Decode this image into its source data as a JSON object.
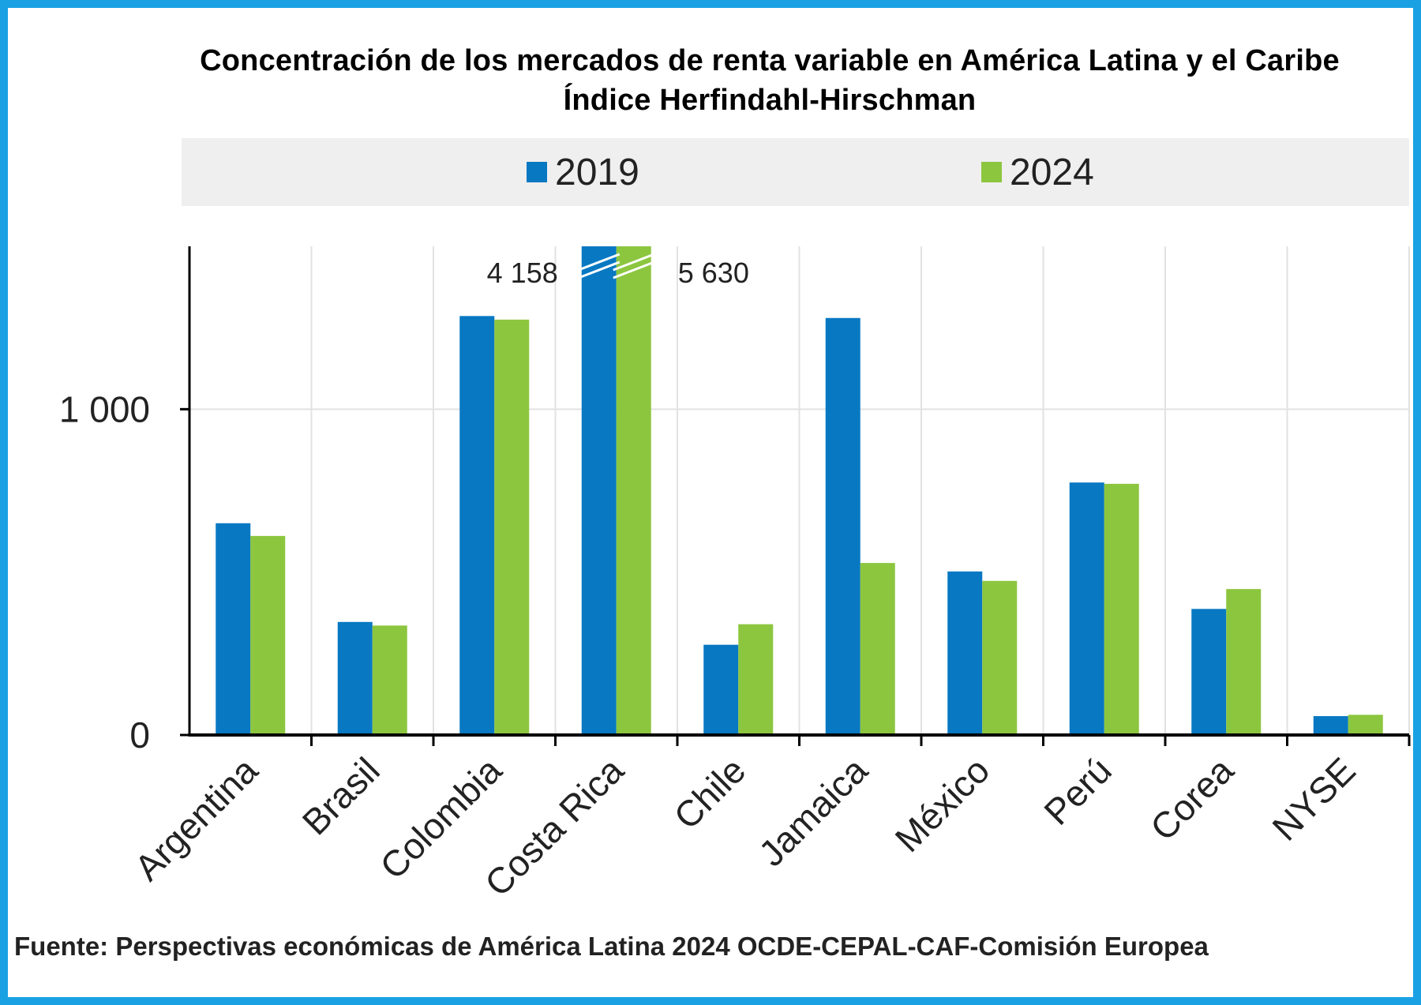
{
  "colors": {
    "series_2019": "#0878c2",
    "series_2024": "#8cc63f",
    "frame": "#1aa1e4",
    "legend_bg": "#efefef",
    "grid": "#e2e2e2"
  },
  "footer": {
    "source": "Fuente: Perspectivas económicas de América Latina 2024 OCDE-CEPAL-CAF-Comisión Europea"
  },
  "chart_data": {
    "type": "bar",
    "title": "Concentración de los mercados de renta variable en América Latina y el Caribe",
    "subtitle": "Índice Herfindahl-Hirschman",
    "categories": [
      "Argentina",
      "Brasil",
      "Colombia",
      "Costa Rica",
      "Chile",
      "Jamaica",
      "México",
      "Perú",
      "Corea",
      "NYSE"
    ],
    "series": [
      {
        "name": "2019",
        "values": [
          650,
          347,
          1286,
          4158,
          277,
          1280,
          502,
          775,
          387,
          58
        ]
      },
      {
        "name": "2024",
        "values": [
          611,
          336,
          1275,
          5630,
          340,
          528,
          473,
          771,
          448,
          62
        ]
      }
    ],
    "yticks": [
      0,
      1000
    ],
    "ytick_labels": [
      "0",
      "1 000"
    ],
    "ylim": [
      0,
      1500
    ],
    "axis_break": {
      "category": "Costa Rica",
      "labels": [
        "4 158",
        "5 630"
      ]
    },
    "grid": true,
    "legend_position": "top"
  }
}
